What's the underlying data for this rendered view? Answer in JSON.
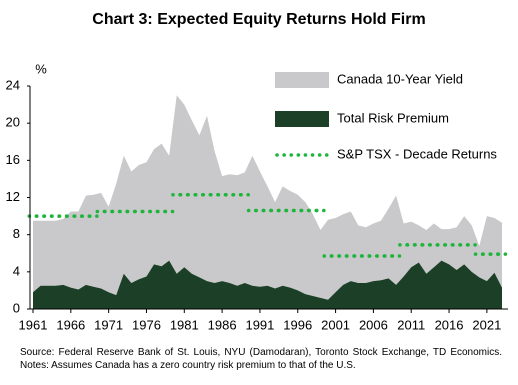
{
  "chart_data": {
    "type": "area",
    "title": "Chart 3: Expected Equity Returns Hold Firm",
    "y_label": "%",
    "note": "Source: Federal Reserve Bank of St. Louis, NYU (Damodaran), Toronto Stock Exchange, TD Economics. Notes: Assumes Canada has a zero country risk premium to that of the U.S.",
    "x": [
      1961,
      1962,
      1963,
      1964,
      1965,
      1966,
      1967,
      1968,
      1969,
      1970,
      1971,
      1972,
      1973,
      1974,
      1975,
      1976,
      1977,
      1978,
      1979,
      1980,
      1981,
      1982,
      1983,
      1984,
      1985,
      1986,
      1987,
      1988,
      1989,
      1990,
      1991,
      1992,
      1993,
      1994,
      1995,
      1996,
      1997,
      1998,
      1999,
      2000,
      2001,
      2002,
      2003,
      2004,
      2005,
      2006,
      2007,
      2008,
      2009,
      2010,
      2011,
      2012,
      2013,
      2014,
      2015,
      2016,
      2017,
      2018,
      2019,
      2020,
      2021,
      2022,
      2023
    ],
    "series": [
      {
        "name": "Canada 10-Year Yield",
        "color": "#c9c8ca",
        "values": [
          7.7,
          7.0,
          7.0,
          7.0,
          7.1,
          8.2,
          8.4,
          9.6,
          9.9,
          10.3,
          9.2,
          12.0,
          12.7,
          12.0,
          12.3,
          12.3,
          12.4,
          13.2,
          11.3,
          19.2,
          17.5,
          16.5,
          15.3,
          17.8,
          14.2,
          11.3,
          11.7,
          11.9,
          11.9,
          14.0,
          12.4,
          10.7,
          9.3,
          10.7,
          10.4,
          10.3,
          9.9,
          8.8,
          7.3,
          8.6,
          8.0,
          7.6,
          7.5,
          6.2,
          6.0,
          6.2,
          6.4,
          7.5,
          9.6,
          5.7,
          4.9,
          4.0,
          4.7,
          4.7,
          3.4,
          3.8,
          4.6,
          5.2,
          5.0,
          3.4,
          7.0,
          5.9,
          7.0
        ]
      },
      {
        "name": "Total Risk Premium",
        "color": "#1b3f27",
        "values": [
          1.8,
          2.5,
          2.5,
          2.5,
          2.6,
          2.3,
          2.1,
          2.6,
          2.4,
          2.2,
          1.8,
          1.5,
          3.8,
          2.8,
          3.2,
          3.5,
          4.8,
          4.6,
          5.2,
          3.8,
          4.5,
          3.8,
          3.4,
          3.0,
          2.8,
          3.0,
          2.8,
          2.5,
          2.8,
          2.5,
          2.4,
          2.5,
          2.2,
          2.5,
          2.3,
          2.0,
          1.6,
          1.4,
          1.2,
          1.0,
          1.8,
          2.6,
          3.0,
          2.8,
          2.8,
          3.0,
          3.1,
          3.3,
          2.6,
          3.5,
          4.5,
          5.0,
          3.8,
          4.5,
          5.2,
          4.8,
          4.2,
          4.8,
          4.0,
          3.4,
          3.0,
          3.9,
          2.3
        ]
      },
      {
        "name": "S&P TSX - Decade Returns",
        "color": "#1db53c",
        "values": [
          10.0,
          10.0,
          10.0,
          10.0,
          10.0,
          10.0,
          10.0,
          10.0,
          10.0,
          10.5,
          10.5,
          10.5,
          10.5,
          10.5,
          10.5,
          10.5,
          10.5,
          10.5,
          10.5,
          12.3,
          12.3,
          12.3,
          12.3,
          12.3,
          12.3,
          12.3,
          12.3,
          12.3,
          12.3,
          10.6,
          10.6,
          10.6,
          10.6,
          10.6,
          10.6,
          10.6,
          10.6,
          10.6,
          10.6,
          5.7,
          5.7,
          5.7,
          5.7,
          5.7,
          5.7,
          5.7,
          5.7,
          5.7,
          5.7,
          6.9,
          6.9,
          6.9,
          6.9,
          6.9,
          6.9,
          6.9,
          6.9,
          6.9,
          6.9,
          5.9,
          5.9,
          5.9,
          5.9
        ]
      }
    ],
    "xlim": [
      1961,
      2023
    ],
    "xticks": [
      1961,
      1966,
      1971,
      1976,
      1981,
      1986,
      1991,
      1996,
      2001,
      2006,
      2011,
      2016,
      2021
    ],
    "ylim": [
      0,
      24
    ],
    "yticks": [
      0,
      4,
      8,
      12,
      16,
      20,
      24
    ]
  }
}
